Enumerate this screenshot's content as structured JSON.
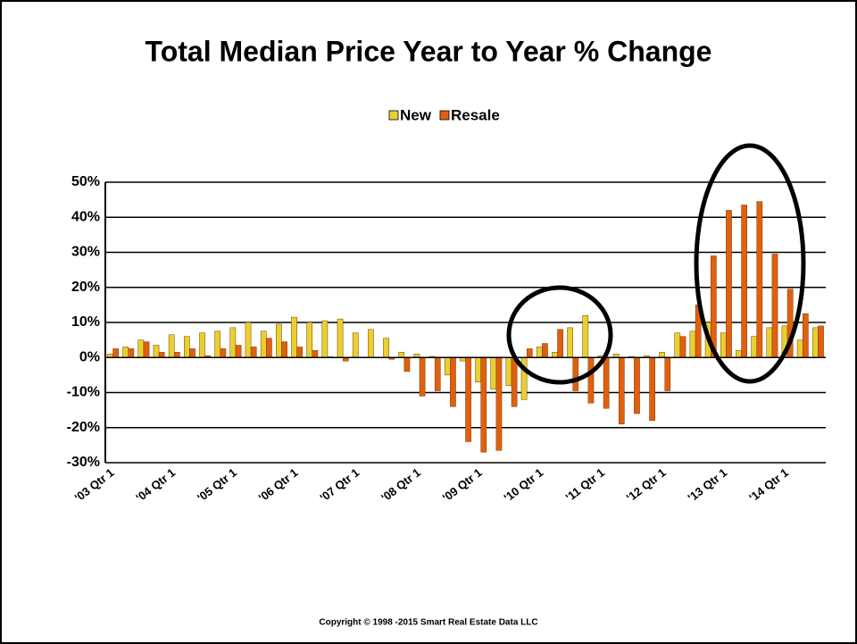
{
  "chart_data": {
    "type": "bar",
    "title": "Total Median Price Year to Year % Change",
    "footer": "Copyright © 1998 -2015 Smart Real Estate Data LLC",
    "categories": [
      "'03 Qtr 1",
      null,
      null,
      null,
      "'04 Qtr 1",
      null,
      null,
      null,
      "'05 Qtr 1",
      null,
      null,
      null,
      "'06 Qtr 1",
      null,
      null,
      null,
      "'07 Qtr 1",
      null,
      null,
      null,
      "'08 Qtr 1",
      null,
      null,
      null,
      "'09 Qtr 1",
      null,
      null,
      null,
      "'10 Qtr 1",
      null,
      null,
      null,
      "'11 Qtr 1",
      null,
      null,
      null,
      "'12 Qtr 1",
      null,
      null,
      null,
      "'13 Qtr 1",
      null,
      null,
      null,
      "'14 Qtr 1",
      null,
      null
    ],
    "series": [
      {
        "name": "New",
        "color": "#e8d030",
        "values": [
          1,
          3,
          5,
          3.5,
          6.5,
          6,
          7,
          7.5,
          8.5,
          10,
          7.5,
          9.5,
          11.5,
          10,
          10.5,
          11,
          7,
          8,
          5.5,
          1.5,
          1,
          0.3,
          -5,
          -1,
          -7,
          -9,
          -8,
          -12,
          3,
          1.5,
          8.5,
          12,
          0.5,
          1,
          0.3,
          0.5,
          1.5,
          7,
          7.5,
          10,
          7,
          2,
          6,
          8.5,
          9,
          5,
          8.5
        ]
      },
      {
        "name": "Resale",
        "color": "#e06010",
        "values": [
          2.5,
          2.5,
          4.5,
          1.5,
          1.5,
          2.5,
          0.5,
          2.5,
          3.5,
          3,
          5.5,
          4.5,
          3,
          2,
          0.2,
          -1,
          0,
          0,
          -0.5,
          -4,
          -11,
          -9.5,
          -14,
          -24,
          -27,
          -26.5,
          -14,
          2.5,
          4,
          8,
          -9.5,
          -13,
          -14.5,
          -19,
          -16,
          -18,
          -9.5,
          6,
          15,
          29,
          42,
          43.5,
          44.5,
          29.5,
          19.5,
          12.5,
          9
        ]
      }
    ],
    "ylim": [
      -30,
      50
    ],
    "yticks": [
      {
        "value": -30,
        "label": "-30%"
      },
      {
        "value": -20,
        "label": "-20%"
      },
      {
        "value": -10,
        "label": "-10%"
      },
      {
        "value": 0,
        "label": "0%"
      },
      {
        "value": 10,
        "label": "10%"
      },
      {
        "value": 20,
        "label": "20%"
      },
      {
        "value": 30,
        "label": "30%"
      },
      {
        "value": 40,
        "label": "40%"
      },
      {
        "value": 50,
        "label": "50%"
      }
    ],
    "grid": true,
    "legend": "top"
  }
}
